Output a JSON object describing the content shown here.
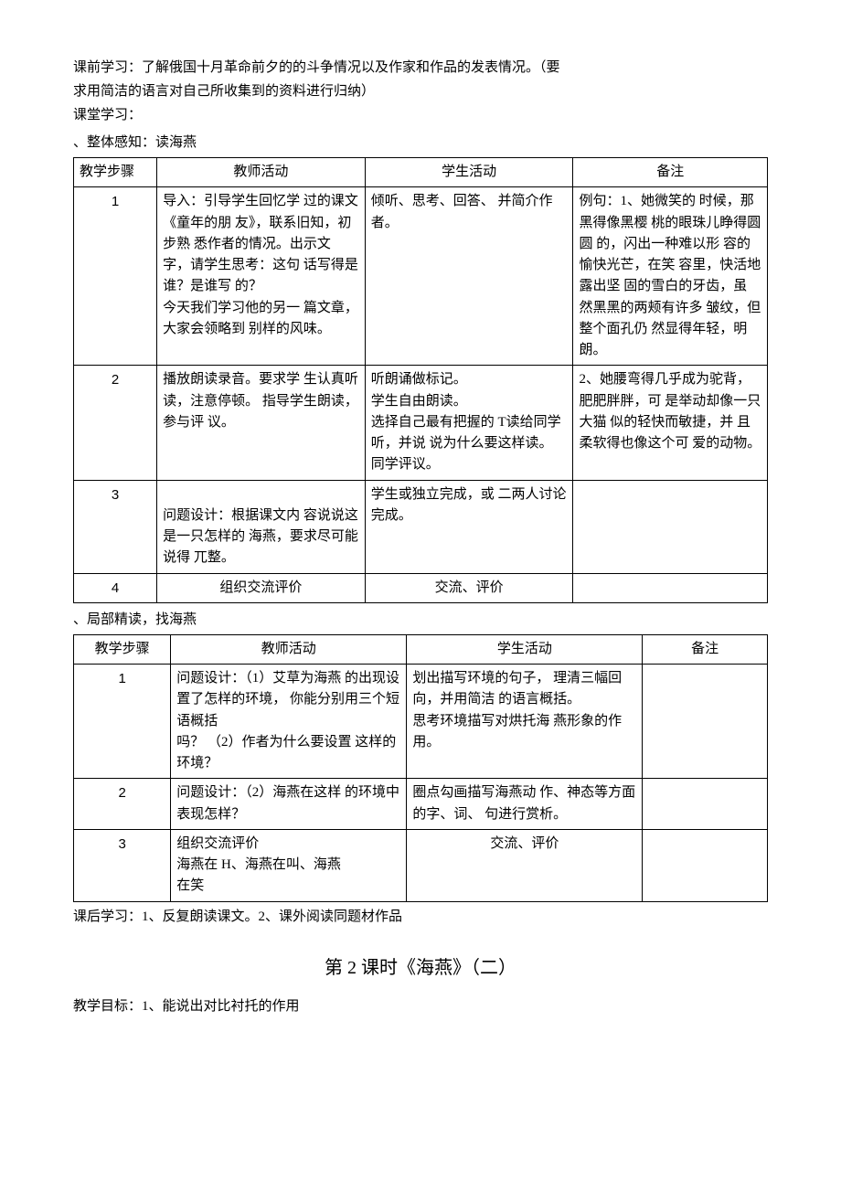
{
  "intro": {
    "line1": "课前学习：了解俄国十月革命前夕的的斗争情况以及作家和作品的发表情况。（要",
    "line2": "求用简洁的语言对自己所收集到的资料进行归纳）",
    "line3": "课堂学习：",
    "section1_label": "、整体感知：读海燕"
  },
  "table1": {
    "headers": {
      "c1": "教学步骤",
      "c2": "教师活动",
      "c3": "学生活动",
      "c4": "备注"
    },
    "rows": [
      {
        "step": "1",
        "teacher": "导入：引导学生回忆学 过的课文《童年的朋 友》，联系旧知，初步熟 悉作者的情况。出示文 字，请学生思考：这句 话写得是谁？是谁写 的？\n今天我们学习他的另一 篇文章，大家会领略到 别样的风味。",
        "student": "倾听、思考、回答、 并简介作者。",
        "note": "例句：1、她微笑的 时候，那黑得像黑樱 桃的眼珠儿睁得圆圆 的，闪出一种难以形 容的愉快光芒，在笑 容里，快活地露出坚 固的雪白的牙齿，虽 然黑黑的两颊有许多 皱纹，但整个面孔仍 然显得年轻，明朗。"
      },
      {
        "step": "2",
        "teacher": "播放朗读录音。要求学 生认真听读，注意停顿。 指导学生朗读，参与评 议。",
        "student": "听朗诵做标记。\n学生自由朗读。\n选择自己最有把握的 T读给同学听，并说 说为什么要这样读。\n同学评议。",
        "note": "2、她腰弯得几乎成为驼背，肥肥胖胖，可 是举动却像一只大猫 似的轻快而敏捷，并 且柔软得也像这个可 爱的动物。"
      },
      {
        "step": "3",
        "teacher": "\n问题设计：根据课文内 容说说这是一只怎样的 海燕，要求尽可能说得 兀整。",
        "student": "学生或独立完成，或 二两人讨论完成。",
        "note": ""
      },
      {
        "step": "4",
        "teacher": "组织交流评价",
        "student": "交流、评价",
        "note": ""
      }
    ]
  },
  "mid": {
    "section2_label": "、局部精读，找海燕"
  },
  "table2": {
    "headers": {
      "c1": "教学步骤",
      "c2": "教师活动",
      "c3": "学生活动",
      "c4": "备注"
    },
    "rows": [
      {
        "step": "1",
        "teacher": "问题设计：（1）艾草为海燕 的出现设置了怎样的环境，  你能分别用三个短语概括\n吗？ （2）作者为什么要设置 这样的环境？",
        "student": "划出描写环境的句子，  理清三幅回向，并用简洁 的语言概括。\n思考环境描写对烘托海 燕形象的作用。",
        "note": ""
      },
      {
        "step": "2",
        "teacher": "问题设计：（2）海燕在这样 的环境中表现怎样？",
        "student": "圈点勾画描写海燕动 作、神态等方面的字、词、 句进行赏析。",
        "note": ""
      },
      {
        "step": "3",
        "teacher": "组织交流评价\n海燕在 H、海燕在叫、海燕\n在笑",
        "student": "交流、评价",
        "note": ""
      }
    ]
  },
  "outro": {
    "after_study": "课后学习：1、反复朗读课文。2、课外阅读同题材作品",
    "lesson_title": "第 2 课时《海燕》（二）",
    "goal": "教学目标：1、能说出对比衬托的作用"
  }
}
